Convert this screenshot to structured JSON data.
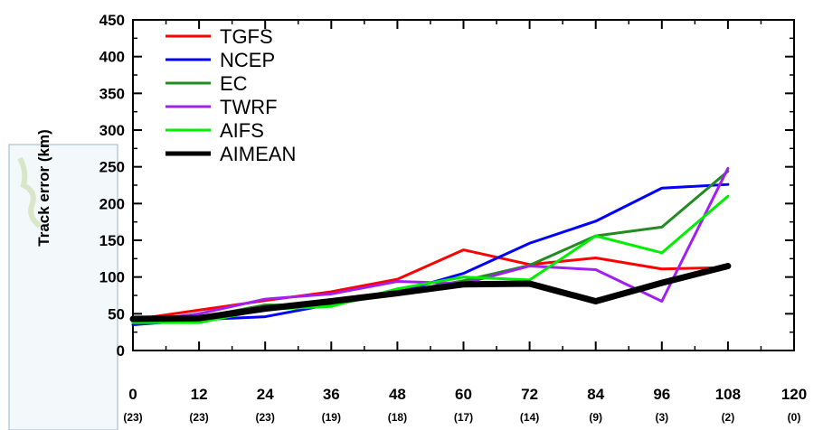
{
  "chart_data": {
    "type": "line",
    "title": "",
    "xlabel": "",
    "ylabel": "Track error (km)",
    "x": [
      0,
      12,
      24,
      36,
      48,
      60,
      72,
      84,
      96,
      108
    ],
    "x_ticks": [
      "0",
      "12",
      "24",
      "36",
      "48",
      "60",
      "72",
      "84",
      "96",
      "108",
      "120"
    ],
    "x_counts": [
      "(23)",
      "(23)",
      "(23)",
      "(19)",
      "(18)",
      "(17)",
      "(14)",
      "(9)",
      "(3)",
      "(2)",
      "(0)"
    ],
    "xlim": [
      0,
      120
    ],
    "y_ticks": [
      "0",
      "50",
      "100",
      "150",
      "200",
      "250",
      "300",
      "350",
      "400",
      "450"
    ],
    "ylim": [
      0,
      450
    ],
    "grid": false,
    "legend_position": "top-left",
    "series": [
      {
        "name": "TGFS",
        "color": "#ff0000",
        "values": [
          42,
          55,
          68,
          80,
          97,
          137,
          117,
          126,
          111,
          113
        ]
      },
      {
        "name": "NCEP",
        "color": "#0000ff",
        "values": [
          35,
          42,
          46,
          63,
          79,
          105,
          146,
          176,
          221,
          226
        ]
      },
      {
        "name": "EC",
        "color": "#228b22",
        "values": [
          40,
          45,
          62,
          62,
          79,
          95,
          116,
          156,
          168,
          244
        ]
      },
      {
        "name": "TWRF",
        "color": "#a020f0",
        "values": [
          39,
          50,
          70,
          77,
          94,
          91,
          115,
          110,
          67,
          248
        ]
      },
      {
        "name": "AIFS",
        "color": "#00ee00",
        "values": [
          38,
          38,
          56,
          60,
          84,
          100,
          96,
          156,
          133,
          210
        ]
      },
      {
        "name": "AIMEAN",
        "color": "#000000",
        "values": [
          43,
          44,
          57,
          67,
          78,
          90,
          91,
          67,
          92,
          115
        ]
      }
    ]
  }
}
